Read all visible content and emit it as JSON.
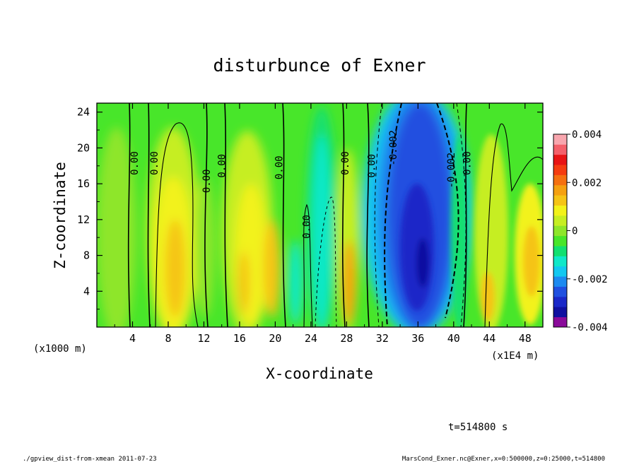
{
  "chart_data": {
    "type": "heatmap",
    "title": "disturbunce of Exner",
    "xlabel": "X-coordinate",
    "ylabel": "Z-coordinate",
    "x_unit": "(x1E4 m)",
    "y_unit": "(x1000 m)",
    "xlim": [
      0,
      50
    ],
    "ylim": [
      0,
      25
    ],
    "x_ticks": [
      4,
      8,
      12,
      16,
      20,
      24,
      28,
      32,
      36,
      40,
      44,
      48
    ],
    "y_ticks": [
      4,
      8,
      12,
      16,
      20,
      24
    ],
    "colorbar": {
      "min": -0.004,
      "max": 0.004,
      "labels": [
        "0.004",
        "0.002",
        "0",
        "-0.002",
        "-0.004"
      ],
      "colors": [
        "#8a0a9a",
        "#1010a0",
        "#1a28c8",
        "#2050e0",
        "#1c8af0",
        "#12c8f0",
        "#10e8c8",
        "#12e070",
        "#48e62a",
        "#8ee62a",
        "#c6ee22",
        "#f2f21a",
        "#f5c416",
        "#f5a010",
        "#f57010",
        "#f53c10",
        "#e81414",
        "#f4606a",
        "#f8a6ae"
      ]
    },
    "contour_labels": [
      {
        "x": 4.2,
        "z": 18.3,
        "text": "0.00"
      },
      {
        "x": 6.4,
        "z": 18.3,
        "text": "0.00"
      },
      {
        "x": 12.3,
        "z": 16.3,
        "text": "0.00"
      },
      {
        "x": 14.0,
        "z": 18.0,
        "text": "0.00"
      },
      {
        "x": 20.4,
        "z": 17.8,
        "text": "0.00"
      },
      {
        "x": 23.5,
        "z": 11.2,
        "text": "0.00"
      },
      {
        "x": 27.8,
        "z": 18.3,
        "text": "0.00"
      },
      {
        "x": 30.8,
        "z": 18.0,
        "text": "0.00"
      },
      {
        "x": 33.2,
        "z": 20.0,
        "text": "-0.002"
      },
      {
        "x": 39.7,
        "z": 17.5,
        "text": "-0.002"
      },
      {
        "x": 41.5,
        "z": 18.3,
        "text": "0.00"
      }
    ]
  },
  "annotations": {
    "time": "t=514800 s",
    "footer_left": "./gpview_dist-from-xmean  2011-07-23",
    "footer_right": "MarsCond_Exner.nc@Exner,x=0:500000,z=0:25000,t=514800"
  }
}
